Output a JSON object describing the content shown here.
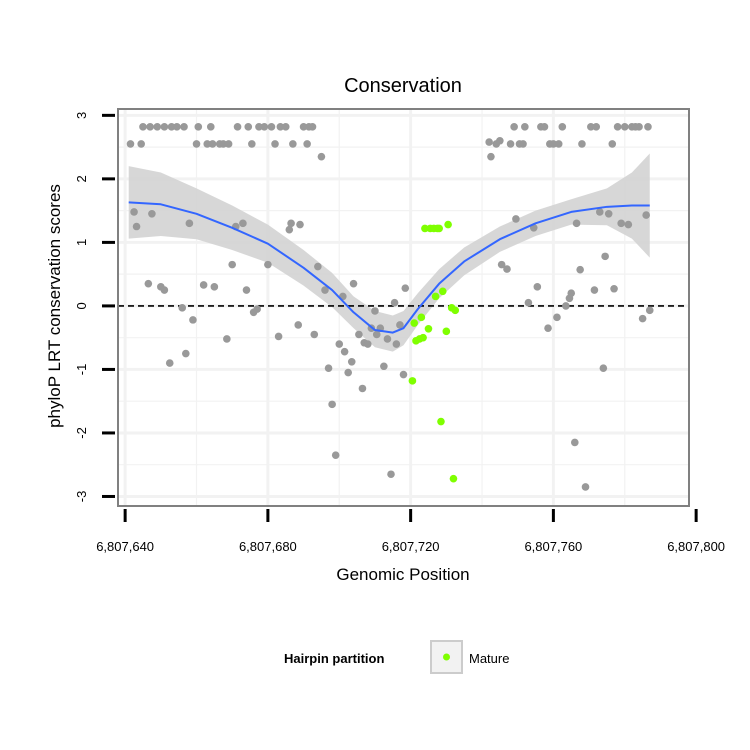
{
  "chart_data": {
    "type": "scatter",
    "title": "Conservation",
    "xlabel": "Genomic Position",
    "ylabel": "phyloP LRT conservation scores",
    "xlim": [
      6807638,
      6807798
    ],
    "ylim": [
      -3.15,
      3.1
    ],
    "x_ticks": [
      {
        "value": 6807640,
        "label": "6,807,640"
      },
      {
        "value": 6807680,
        "label": "6,807,680"
      },
      {
        "value": 6807720,
        "label": "6,807,720"
      },
      {
        "value": 6807760,
        "label": "6,807,760"
      },
      {
        "value": 6807800,
        "label": "6,807,800"
      }
    ],
    "y_ticks": [
      {
        "value": 3,
        "label": "3"
      },
      {
        "value": 2,
        "label": "2"
      },
      {
        "value": 1,
        "label": "1"
      },
      {
        "value": 0,
        "label": "0"
      },
      {
        "value": -1,
        "label": "-1"
      },
      {
        "value": -2,
        "label": "-2"
      },
      {
        "value": -3,
        "label": "-3"
      }
    ],
    "reference_line": {
      "y": 0,
      "style": "dashed",
      "color": "#000000"
    },
    "grid": true,
    "colors": {
      "other_points": "#999999",
      "mature_points": "#7FFF00",
      "smooth_line": "#3366FF",
      "confidence_band": "#d3d3d3",
      "panel_border": "#808080",
      "grid": "#f2f2f2"
    },
    "series": [
      {
        "values": [
          [
            6807641.5,
            2.55
          ],
          [
            6807642.5,
            1.48
          ],
          [
            6807643.2,
            1.25
          ],
          [
            6807644.5,
            2.55
          ],
          [
            6807645,
            2.82
          ],
          [
            6807646.5,
            0.35
          ],
          [
            6807647,
            2.82
          ],
          [
            6807647.5,
            1.45
          ],
          [
            6807649,
            2.82
          ],
          [
            6807650,
            0.3
          ],
          [
            6807651,
            2.82
          ],
          [
            6807651,
            0.25
          ],
          [
            6807652.5,
            -0.9
          ],
          [
            6807653,
            2.82
          ],
          [
            6807654.5,
            2.82
          ],
          [
            6807656,
            -0.03
          ],
          [
            6807656.5,
            2.82
          ],
          [
            6807657,
            -0.75
          ],
          [
            6807658,
            1.3
          ],
          [
            6807659,
            -0.22
          ],
          [
            6807660,
            2.55
          ],
          [
            6807660.5,
            2.82
          ],
          [
            6807662,
            0.33
          ],
          [
            6807663,
            2.55
          ],
          [
            6807664,
            2.82
          ],
          [
            6807664.5,
            2.55
          ],
          [
            6807665,
            0.3
          ],
          [
            6807666.5,
            2.55
          ],
          [
            6807667.5,
            2.55
          ],
          [
            6807668.5,
            -0.52
          ],
          [
            6807669,
            2.55
          ],
          [
            6807670,
            0.65
          ],
          [
            6807671,
            1.25
          ],
          [
            6807671.5,
            2.82
          ],
          [
            6807673,
            1.3
          ],
          [
            6807674,
            0.25
          ],
          [
            6807674.5,
            2.82
          ],
          [
            6807675.5,
            2.55
          ],
          [
            6807676,
            -0.1
          ],
          [
            6807677,
            -0.05
          ],
          [
            6807677.5,
            2.82
          ],
          [
            6807679,
            2.82
          ],
          [
            6807680,
            0.65
          ],
          [
            6807681,
            2.82
          ],
          [
            6807682,
            2.55
          ],
          [
            6807683,
            -0.48
          ],
          [
            6807683.5,
            2.82
          ],
          [
            6807685,
            2.82
          ],
          [
            6807686,
            1.2
          ],
          [
            6807686.5,
            1.3
          ],
          [
            6807687,
            2.55
          ],
          [
            6807688.5,
            -0.3
          ],
          [
            6807689,
            1.28
          ],
          [
            6807690,
            2.82
          ],
          [
            6807691,
            2.55
          ],
          [
            6807691.5,
            2.82
          ],
          [
            6807692.5,
            2.82
          ],
          [
            6807693,
            -0.45
          ],
          [
            6807694,
            0.62
          ],
          [
            6807695,
            2.35
          ],
          [
            6807696,
            0.25
          ],
          [
            6807697,
            -0.98
          ],
          [
            6807698,
            -1.55
          ],
          [
            6807699,
            -2.35
          ],
          [
            6807700,
            -0.6
          ],
          [
            6807701,
            0.15
          ],
          [
            6807701.5,
            -0.72
          ],
          [
            6807702.5,
            -1.05
          ],
          [
            6807703.5,
            -0.88
          ],
          [
            6807704,
            0.35
          ],
          [
            6807705.5,
            -0.45
          ],
          [
            6807706.5,
            -1.3
          ],
          [
            6807707,
            -0.58
          ],
          [
            6807708,
            -0.6
          ],
          [
            6807709,
            -0.35
          ],
          [
            6807710,
            -0.08
          ],
          [
            6807710.5,
            -0.45
          ],
          [
            6807711.5,
            -0.35
          ],
          [
            6807712.5,
            -0.95
          ],
          [
            6807713.5,
            -0.52
          ],
          [
            6807714.5,
            -2.65
          ],
          [
            6807715.5,
            0.05
          ],
          [
            6807716,
            -0.6
          ],
          [
            6807717,
            -0.3
          ],
          [
            6807718,
            -1.08
          ],
          [
            6807718.5,
            0.28
          ],
          [
            6807742,
            2.58
          ],
          [
            6807742.5,
            2.35
          ],
          [
            6807744,
            2.55
          ],
          [
            6807745,
            2.6
          ],
          [
            6807745.5,
            0.65
          ],
          [
            6807747,
            0.58
          ],
          [
            6807748,
            2.55
          ],
          [
            6807749,
            2.82
          ],
          [
            6807749.5,
            1.37
          ],
          [
            6807750.5,
            2.55
          ],
          [
            6807751.5,
            2.55
          ],
          [
            6807752,
            2.82
          ],
          [
            6807753,
            0.05
          ],
          [
            6807754.5,
            1.23
          ],
          [
            6807755.5,
            0.3
          ],
          [
            6807756.5,
            2.82
          ],
          [
            6807757.5,
            2.82
          ],
          [
            6807758.5,
            -0.35
          ],
          [
            6807759,
            2.55
          ],
          [
            6807760,
            2.55
          ],
          [
            6807761,
            -0.18
          ],
          [
            6807761.5,
            2.55
          ],
          [
            6807762.5,
            2.82
          ],
          [
            6807763.5,
            0
          ],
          [
            6807764.5,
            0.12
          ],
          [
            6807765,
            0.2
          ],
          [
            6807766,
            -2.15
          ],
          [
            6807766.5,
            1.3
          ],
          [
            6807767.5,
            0.57
          ],
          [
            6807768,
            2.55
          ],
          [
            6807769,
            -2.85
          ],
          [
            6807770.5,
            2.82
          ],
          [
            6807771.5,
            0.25
          ],
          [
            6807772,
            2.82
          ],
          [
            6807773,
            1.48
          ],
          [
            6807774,
            -0.98
          ],
          [
            6807774.5,
            0.78
          ],
          [
            6807775.5,
            1.45
          ],
          [
            6807776.5,
            2.55
          ],
          [
            6807777,
            0.27
          ],
          [
            6807778,
            2.82
          ],
          [
            6807779,
            1.3
          ],
          [
            6807780,
            2.82
          ],
          [
            6807781,
            1.28
          ],
          [
            6807782,
            2.82
          ],
          [
            6807783,
            2.82
          ],
          [
            6807784,
            2.82
          ],
          [
            6807785,
            -0.2
          ],
          [
            6807786,
            1.43
          ],
          [
            6807786.5,
            2.82
          ],
          [
            6807787,
            -0.07
          ]
        ]
      },
      {
        "name": "Mature",
        "values": [
          [
            6807720.5,
            -1.18
          ],
          [
            6807721,
            -0.27
          ],
          [
            6807721.5,
            -0.55
          ],
          [
            6807722.5,
            -0.52
          ],
          [
            6807723,
            -0.18
          ],
          [
            6807723.5,
            -0.5
          ],
          [
            6807724,
            1.22
          ],
          [
            6807725,
            -0.36
          ],
          [
            6807725.5,
            1.22
          ],
          [
            6807726.5,
            1.22
          ],
          [
            6807727,
            0.15
          ],
          [
            6807727.5,
            1.22
          ],
          [
            6807728,
            1.22
          ],
          [
            6807728.5,
            -1.82
          ],
          [
            6807729,
            0.23
          ],
          [
            6807730,
            -0.4
          ],
          [
            6807730.5,
            1.28
          ],
          [
            6807731.5,
            -0.03
          ],
          [
            6807732,
            -2.72
          ],
          [
            6807732.5,
            -0.07
          ]
        ]
      }
    ],
    "smooth": {
      "x": [
        6807641,
        6807650,
        6807660,
        6807670,
        6807680,
        6807690,
        6807698,
        6807704,
        6807710,
        6807715,
        6807718,
        6807722,
        6807728,
        6807735,
        6807745,
        6807755,
        6807765,
        6807775,
        6807782,
        6807787
      ],
      "y": [
        1.63,
        1.6,
        1.45,
        1.23,
        0.98,
        0.6,
        0.25,
        -0.1,
        -0.38,
        -0.42,
        -0.35,
        -0.05,
        0.35,
        0.7,
        1.05,
        1.3,
        1.48,
        1.56,
        1.58,
        1.58
      ],
      "upper": [
        2.2,
        2.1,
        1.85,
        1.58,
        1.28,
        0.88,
        0.52,
        0.15,
        -0.08,
        -0.15,
        -0.08,
        0.2,
        0.58,
        0.92,
        1.25,
        1.5,
        1.68,
        1.85,
        2.1,
        2.4
      ],
      "lower": [
        1.06,
        1.1,
        1.05,
        0.88,
        0.68,
        0.32,
        -0.02,
        -0.35,
        -0.65,
        -0.72,
        -0.62,
        -0.3,
        0.12,
        0.48,
        0.85,
        1.1,
        1.28,
        1.27,
        1.06,
        0.76
      ]
    },
    "legend": {
      "title": "Hairpin partition",
      "entries": [
        {
          "label": "Mature",
          "color": "#7FFF00"
        }
      ],
      "position": "bottom"
    }
  }
}
